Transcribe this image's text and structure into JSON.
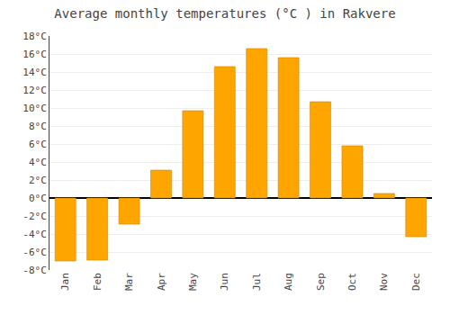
{
  "chart_data": {
    "type": "bar",
    "title": "Average monthly temperatures (°C ) in Rakvere",
    "categories": [
      "Jan",
      "Feb",
      "Mar",
      "Apr",
      "May",
      "Jun",
      "Jul",
      "Aug",
      "Sep",
      "Oct",
      "Nov",
      "Dec"
    ],
    "values": [
      -7.0,
      -6.9,
      -2.9,
      3.1,
      9.7,
      14.6,
      16.6,
      15.6,
      10.7,
      5.8,
      0.5,
      -4.3
    ],
    "color": "#FFA500",
    "ylim": [
      -8,
      18
    ],
    "yticks": [
      {
        "value": -8,
        "label": "-8°C"
      },
      {
        "value": -6,
        "label": "-6°C"
      },
      {
        "value": -4,
        "label": "-4°C"
      },
      {
        "value": -2,
        "label": "-2°C"
      },
      {
        "value": 0,
        "label": "0°C"
      },
      {
        "value": 2,
        "label": "2°C"
      },
      {
        "value": 4,
        "label": "4°C"
      },
      {
        "value": 6,
        "label": "6°C"
      },
      {
        "value": 8,
        "label": "8°C"
      },
      {
        "value": 10,
        "label": "10°C"
      },
      {
        "value": 12,
        "label": "12°C"
      },
      {
        "value": 14,
        "label": "14°C"
      },
      {
        "value": 16,
        "label": "16°C"
      },
      {
        "value": 18,
        "label": "18°C"
      }
    ],
    "grid": true
  }
}
